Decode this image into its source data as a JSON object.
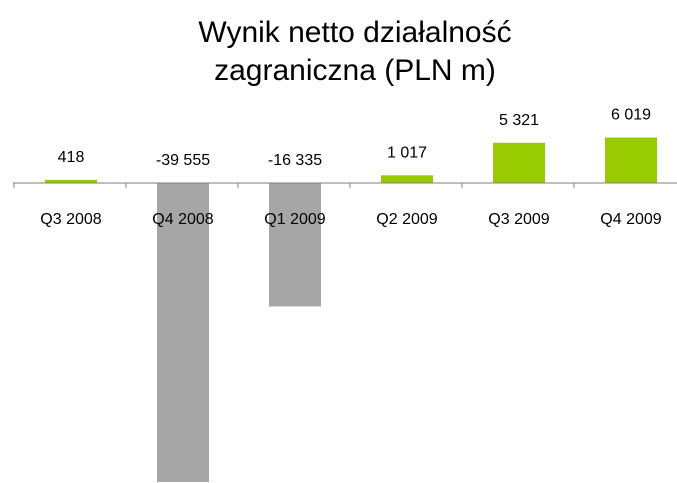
{
  "chart_data": {
    "type": "bar",
    "title": "Wynik netto działalność zagraniczna (PLN m)",
    "categories": [
      "Q3 2008",
      "Q4 2008",
      "Q1 2009",
      "Q2 2009",
      "Q3 2009",
      "Q4 2009"
    ],
    "values": [
      418,
      -39555,
      -16335,
      1017,
      5321,
      6019
    ],
    "value_labels": [
      "418",
      "-39 555",
      "-16 335",
      "1 017",
      "5 321",
      "6 019"
    ],
    "colors": [
      "#99cc00",
      "#a6a6a6",
      "#a6a6a6",
      "#99cc00",
      "#99cc00",
      "#99cc00"
    ],
    "grid": false
  }
}
